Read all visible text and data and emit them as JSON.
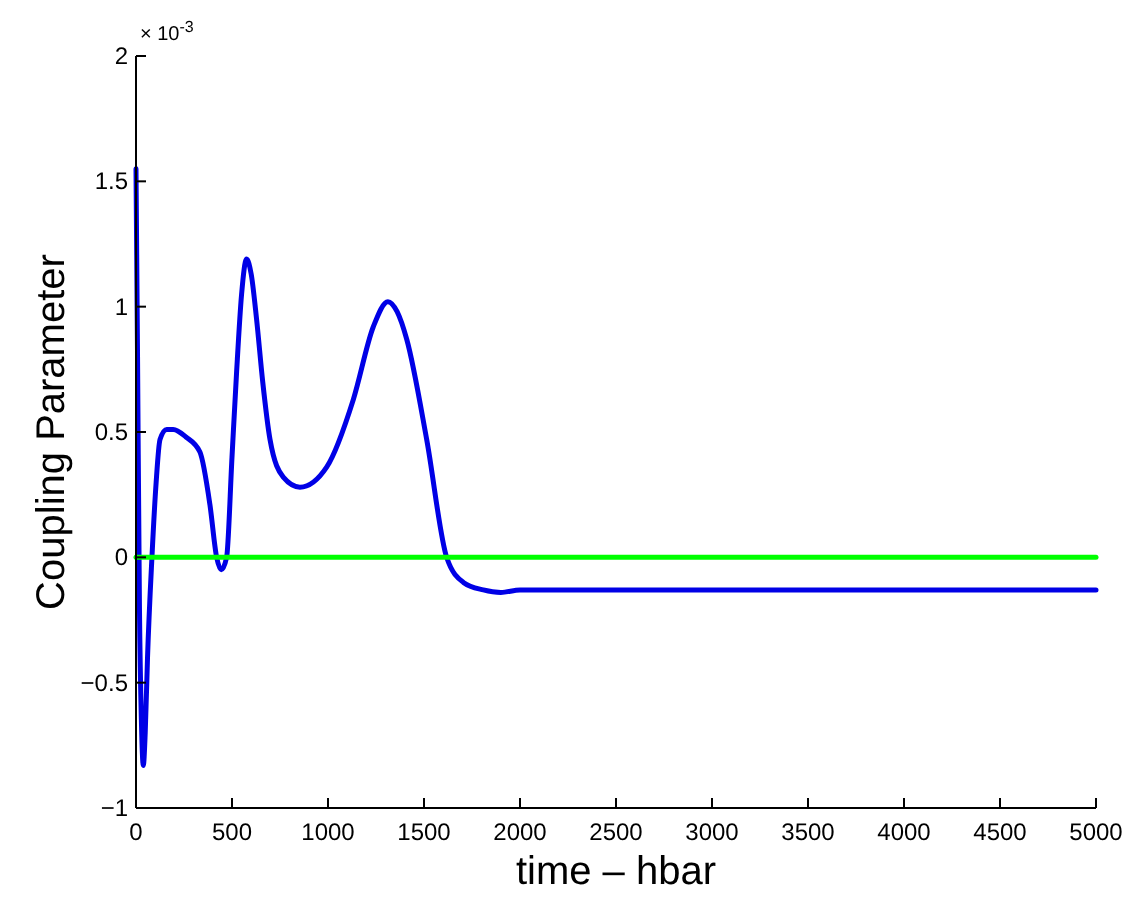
{
  "chart_data": {
    "type": "line",
    "xlabel": "time – hbar",
    "ylabel": "Coupling Parameter",
    "annotations": [
      "× 10$^{-3}$"
    ],
    "xlim": [
      0,
      5000
    ],
    "xticks": [
      0,
      500,
      1000,
      1500,
      2000,
      2500,
      3000,
      3500,
      4000,
      4500,
      5000
    ],
    "ylim": [
      -1,
      2
    ],
    "yticks": [
      -1,
      -0.5,
      0,
      0.5,
      1,
      1.5,
      2
    ],
    "grid": false,
    "line_style": "solid",
    "series": [
      {
        "color": "#0000e6",
        "x": [
          0,
          8,
          18,
          28,
          38,
          48,
          60,
          83,
          105,
          125,
          160,
          194,
          260,
          333,
          385,
          420,
          444,
          472,
          500,
          524,
          550,
          576,
          600,
          628,
          660,
          698,
          767,
          854,
          993,
          1132,
          1236,
          1312,
          1360,
          1410,
          1514,
          1618,
          1705,
          1809,
          1900,
          2000,
          3000,
          4000,
          5000
        ],
        "values": [
          1.55,
          0.8,
          -0.2,
          -0.65,
          -0.83,
          -0.7,
          -0.4,
          0,
          0.3,
          0.47,
          0.51,
          0.51,
          0.48,
          0.42,
          0.21,
          0,
          -0.05,
          0,
          0.4,
          0.74,
          1.05,
          1.19,
          1.13,
          0.95,
          0.7,
          0.47,
          0.32,
          0.28,
          0.36,
          0.63,
          0.92,
          1.02,
          0.98,
          0.87,
          0.47,
          0,
          -0.1,
          -0.13,
          -0.14,
          -0.13,
          -0.13,
          -0.13,
          -0.13
        ]
      },
      {
        "color": "#00ff00",
        "x": [
          0,
          5000
        ],
        "values": [
          0,
          0
        ]
      }
    ]
  }
}
